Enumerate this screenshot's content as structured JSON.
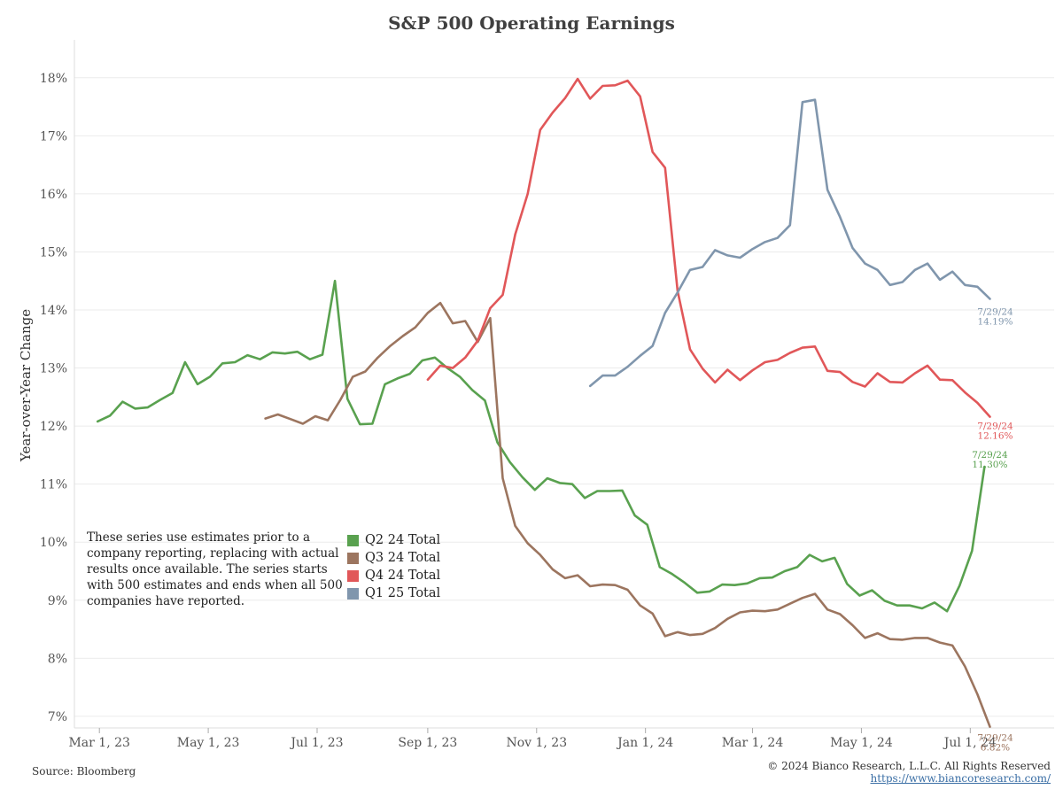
{
  "chart_data": {
    "type": "line",
    "title": "S&P 500 Operating Earnings",
    "ylabel": "Year-over-Year Change",
    "xlabel": "",
    "x_ticks": [
      "Mar 1, 23",
      "May 1, 23",
      "Jul 1, 23",
      "Sep 1, 23",
      "Nov 1, 23",
      "Jan 1, 24",
      "Mar 1, 24",
      "May 1, 24",
      "Jul 1, 24"
    ],
    "y_ticks": [
      "7%",
      "8%",
      "9%",
      "10%",
      "11%",
      "12%",
      "13%",
      "14%",
      "15%",
      "16%",
      "17%",
      "18%"
    ],
    "ylim": [
      6.8,
      18.5
    ],
    "xlim": [
      "2023-02-15",
      "2024-08-17"
    ],
    "grid": true,
    "legend_position": "bottom-left",
    "series": [
      {
        "name": "Q2 24 Total",
        "color": "#59a14f",
        "end_label": {
          "date": "7/29/24",
          "value": "11.30%"
        },
        "points": [
          [
            "2023-02-28",
            12.08
          ],
          [
            "2023-03-07",
            12.18
          ],
          [
            "2023-03-14",
            12.42
          ],
          [
            "2023-03-21",
            12.3
          ],
          [
            "2023-03-28",
            12.32
          ],
          [
            "2023-04-04",
            12.45
          ],
          [
            "2023-04-11",
            12.57
          ],
          [
            "2023-04-18",
            13.1
          ],
          [
            "2023-04-25",
            12.72
          ],
          [
            "2023-05-02",
            12.85
          ],
          [
            "2023-05-09",
            13.08
          ],
          [
            "2023-05-16",
            13.1
          ],
          [
            "2023-05-23",
            13.22
          ],
          [
            "2023-05-30",
            13.15
          ],
          [
            "2023-06-06",
            13.27
          ],
          [
            "2023-06-13",
            13.25
          ],
          [
            "2023-06-20",
            13.28
          ],
          [
            "2023-06-27",
            13.15
          ],
          [
            "2023-07-04",
            13.23
          ],
          [
            "2023-07-11",
            14.5
          ],
          [
            "2023-07-18",
            12.47
          ],
          [
            "2023-07-25",
            12.03
          ],
          [
            "2023-08-01",
            12.04
          ],
          [
            "2023-08-08",
            12.72
          ],
          [
            "2023-08-15",
            12.82
          ],
          [
            "2023-08-22",
            12.9
          ],
          [
            "2023-08-29",
            13.13
          ],
          [
            "2023-09-05",
            13.18
          ],
          [
            "2023-09-12",
            13.0
          ],
          [
            "2023-09-19",
            12.85
          ],
          [
            "2023-09-26",
            12.62
          ],
          [
            "2023-10-03",
            12.44
          ],
          [
            "2023-10-10",
            11.72
          ],
          [
            "2023-10-17",
            11.38
          ],
          [
            "2023-10-24",
            11.12
          ],
          [
            "2023-10-31",
            10.9
          ],
          [
            "2023-11-07",
            11.1
          ],
          [
            "2023-11-14",
            11.02
          ],
          [
            "2023-11-21",
            11.0
          ],
          [
            "2023-11-28",
            10.76
          ],
          [
            "2023-12-05",
            10.88
          ],
          [
            "2023-12-12",
            10.88
          ],
          [
            "2023-12-19",
            10.89
          ],
          [
            "2023-12-26",
            10.46
          ],
          [
            "2024-01-02",
            10.3
          ],
          [
            "2024-01-09",
            9.57
          ],
          [
            "2024-01-16",
            9.45
          ],
          [
            "2024-01-23",
            9.3
          ],
          [
            "2024-01-30",
            9.13
          ],
          [
            "2024-02-06",
            9.15
          ],
          [
            "2024-02-13",
            9.27
          ],
          [
            "2024-02-20",
            9.26
          ],
          [
            "2024-02-27",
            9.29
          ],
          [
            "2024-03-05",
            9.38
          ],
          [
            "2024-03-12",
            9.39
          ],
          [
            "2024-03-19",
            9.5
          ],
          [
            "2024-03-26",
            9.57
          ],
          [
            "2024-04-02",
            9.78
          ],
          [
            "2024-04-09",
            9.67
          ],
          [
            "2024-04-16",
            9.73
          ],
          [
            "2024-04-23",
            9.28
          ],
          [
            "2024-04-30",
            9.08
          ],
          [
            "2024-05-07",
            9.17
          ],
          [
            "2024-05-14",
            8.99
          ],
          [
            "2024-05-21",
            8.91
          ],
          [
            "2024-05-28",
            8.91
          ],
          [
            "2024-06-04",
            8.86
          ],
          [
            "2024-06-11",
            8.96
          ],
          [
            "2024-06-18",
            8.81
          ],
          [
            "2024-06-25",
            9.25
          ],
          [
            "2024-07-02",
            9.85
          ],
          [
            "2024-07-09",
            11.3
          ]
        ]
      },
      {
        "name": "Q3 24 Total",
        "color": "#9c755f",
        "end_label": {
          "date": "7/29/24",
          "value": "6.82%"
        },
        "points": [
          [
            "2023-06-02",
            12.13
          ],
          [
            "2023-06-09",
            12.2
          ],
          [
            "2023-06-16",
            12.12
          ],
          [
            "2023-06-23",
            12.04
          ],
          [
            "2023-06-30",
            12.17
          ],
          [
            "2023-07-07",
            12.1
          ],
          [
            "2023-07-14",
            12.45
          ],
          [
            "2023-07-21",
            12.85
          ],
          [
            "2023-07-28",
            12.94
          ],
          [
            "2023-08-04",
            13.18
          ],
          [
            "2023-08-11",
            13.38
          ],
          [
            "2023-08-18",
            13.55
          ],
          [
            "2023-08-25",
            13.7
          ],
          [
            "2023-09-01",
            13.95
          ],
          [
            "2023-09-08",
            14.12
          ],
          [
            "2023-09-15",
            13.77
          ],
          [
            "2023-09-22",
            13.81
          ],
          [
            "2023-09-29",
            13.45
          ],
          [
            "2023-10-06",
            13.86
          ],
          [
            "2023-10-13",
            11.1
          ],
          [
            "2023-10-20",
            10.28
          ],
          [
            "2023-10-27",
            9.98
          ],
          [
            "2023-11-03",
            9.78
          ],
          [
            "2023-11-10",
            9.53
          ],
          [
            "2023-11-17",
            9.38
          ],
          [
            "2023-11-24",
            9.43
          ],
          [
            "2023-12-01",
            9.24
          ],
          [
            "2023-12-08",
            9.27
          ],
          [
            "2023-12-15",
            9.26
          ],
          [
            "2023-12-22",
            9.18
          ],
          [
            "2023-12-29",
            8.91
          ],
          [
            "2024-01-05",
            8.77
          ],
          [
            "2024-01-12",
            8.38
          ],
          [
            "2024-01-19",
            8.45
          ],
          [
            "2024-01-26",
            8.4
          ],
          [
            "2024-02-02",
            8.42
          ],
          [
            "2024-02-09",
            8.52
          ],
          [
            "2024-02-16",
            8.68
          ],
          [
            "2024-02-23",
            8.79
          ],
          [
            "2024-03-01",
            8.82
          ],
          [
            "2024-03-08",
            8.81
          ],
          [
            "2024-03-15",
            8.84
          ],
          [
            "2024-03-22",
            8.94
          ],
          [
            "2024-03-29",
            9.04
          ],
          [
            "2024-04-05",
            9.11
          ],
          [
            "2024-04-12",
            8.84
          ],
          [
            "2024-04-19",
            8.76
          ],
          [
            "2024-04-26",
            8.57
          ],
          [
            "2024-05-03",
            8.35
          ],
          [
            "2024-05-10",
            8.43
          ],
          [
            "2024-05-17",
            8.33
          ],
          [
            "2024-05-24",
            8.32
          ],
          [
            "2024-05-31",
            8.35
          ],
          [
            "2024-06-07",
            8.35
          ],
          [
            "2024-06-14",
            8.27
          ],
          [
            "2024-06-21",
            8.22
          ],
          [
            "2024-06-28",
            7.86
          ],
          [
            "2024-07-05",
            7.38
          ],
          [
            "2024-07-12",
            6.82
          ]
        ]
      },
      {
        "name": "Q4 24 Total",
        "color": "#e15759",
        "end_label": {
          "date": "7/29/24",
          "value": "12.16%"
        },
        "points": [
          [
            "2023-09-01",
            12.8
          ],
          [
            "2023-09-08",
            13.04
          ],
          [
            "2023-09-15",
            13.0
          ],
          [
            "2023-09-22",
            13.18
          ],
          [
            "2023-09-29",
            13.47
          ],
          [
            "2023-10-06",
            14.03
          ],
          [
            "2023-10-13",
            14.26
          ],
          [
            "2023-10-20",
            15.3
          ],
          [
            "2023-10-27",
            16.0
          ],
          [
            "2023-11-03",
            17.1
          ],
          [
            "2023-11-10",
            17.4
          ],
          [
            "2023-11-17",
            17.65
          ],
          [
            "2023-11-24",
            17.98
          ],
          [
            "2023-12-01",
            17.64
          ],
          [
            "2023-12-08",
            17.86
          ],
          [
            "2023-12-15",
            17.87
          ],
          [
            "2023-12-22",
            17.95
          ],
          [
            "2023-12-29",
            17.68
          ],
          [
            "2024-01-05",
            16.72
          ],
          [
            "2024-01-12",
            16.45
          ],
          [
            "2024-01-19",
            14.33
          ],
          [
            "2024-01-26",
            13.32
          ],
          [
            "2024-02-02",
            12.99
          ],
          [
            "2024-02-09",
            12.75
          ],
          [
            "2024-02-16",
            12.97
          ],
          [
            "2024-02-23",
            12.79
          ],
          [
            "2024-03-01",
            12.96
          ],
          [
            "2024-03-08",
            13.1
          ],
          [
            "2024-03-15",
            13.14
          ],
          [
            "2024-03-22",
            13.26
          ],
          [
            "2024-03-29",
            13.35
          ],
          [
            "2024-04-05",
            13.37
          ],
          [
            "2024-04-12",
            12.95
          ],
          [
            "2024-04-19",
            12.93
          ],
          [
            "2024-04-26",
            12.76
          ],
          [
            "2024-05-03",
            12.68
          ],
          [
            "2024-05-10",
            12.91
          ],
          [
            "2024-05-17",
            12.76
          ],
          [
            "2024-05-24",
            12.75
          ],
          [
            "2024-05-31",
            12.91
          ],
          [
            "2024-06-07",
            13.04
          ],
          [
            "2024-06-14",
            12.8
          ],
          [
            "2024-06-21",
            12.79
          ],
          [
            "2024-06-28",
            12.58
          ],
          [
            "2024-07-05",
            12.4
          ],
          [
            "2024-07-12",
            12.16
          ]
        ]
      },
      {
        "name": "Q1 25 Total",
        "color": "#8096ad",
        "end_label": {
          "date": "7/29/24",
          "value": "14.19%"
        },
        "points": [
          [
            "2023-12-01",
            12.69
          ],
          [
            "2023-12-08",
            12.87
          ],
          [
            "2023-12-15",
            12.87
          ],
          [
            "2023-12-22",
            13.02
          ],
          [
            "2023-12-29",
            13.21
          ],
          [
            "2024-01-05",
            13.38
          ],
          [
            "2024-01-12",
            13.95
          ],
          [
            "2024-01-19",
            14.3
          ],
          [
            "2024-01-26",
            14.69
          ],
          [
            "2024-02-02",
            14.74
          ],
          [
            "2024-02-09",
            15.03
          ],
          [
            "2024-02-16",
            14.94
          ],
          [
            "2024-02-23",
            14.9
          ],
          [
            "2024-03-01",
            15.05
          ],
          [
            "2024-03-08",
            15.17
          ],
          [
            "2024-03-15",
            15.24
          ],
          [
            "2024-03-22",
            15.46
          ],
          [
            "2024-03-29",
            17.58
          ],
          [
            "2024-04-05",
            17.62
          ],
          [
            "2024-04-12",
            16.07
          ],
          [
            "2024-04-19",
            15.6
          ],
          [
            "2024-04-26",
            15.07
          ],
          [
            "2024-05-03",
            14.8
          ],
          [
            "2024-05-10",
            14.69
          ],
          [
            "2024-05-17",
            14.43
          ],
          [
            "2024-05-24",
            14.48
          ],
          [
            "2024-05-31",
            14.69
          ],
          [
            "2024-06-07",
            14.8
          ],
          [
            "2024-06-14",
            14.52
          ],
          [
            "2024-06-21",
            14.66
          ],
          [
            "2024-06-28",
            14.43
          ],
          [
            "2024-07-05",
            14.4
          ],
          [
            "2024-07-12",
            14.19
          ]
        ]
      }
    ]
  },
  "note": "These series use estimates prior to a company reporting, replacing with actual results once available. The series starts with 500 estimates and ends when all 500 companies have reported.",
  "source": "Source: Bloomberg",
  "copyright": "© 2024 Bianco Research, L.L.C. All Rights Reserved",
  "url": "https://www.biancoresearch.com/"
}
